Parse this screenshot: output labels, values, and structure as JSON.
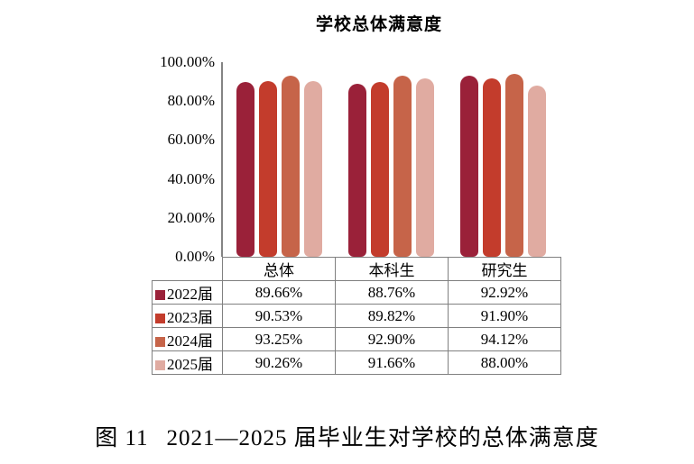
{
  "chart": {
    "title": "学校总体满意度"
  },
  "chart_data": {
    "type": "bar",
    "title": "学校总体满意度",
    "categories": [
      "总体",
      "本科生",
      "研究生"
    ],
    "series": [
      {
        "name": "2022届",
        "color": "#9A2139",
        "values": [
          89.66,
          88.76,
          92.92
        ]
      },
      {
        "name": "2023届",
        "color": "#C33C2C",
        "values": [
          90.53,
          89.82,
          91.9
        ]
      },
      {
        "name": "2024届",
        "color": "#C66449",
        "values": [
          93.25,
          92.9,
          94.12
        ]
      },
      {
        "name": "2025届",
        "color": "#E0ABA1",
        "values": [
          90.26,
          91.66,
          88.0
        ]
      }
    ],
    "ylim": [
      0,
      100
    ],
    "y_ticks": [
      "100.00%",
      "80.00%",
      "60.00%",
      "40.00%",
      "20.00%",
      "0.00%"
    ],
    "grid": false,
    "legend_position": "table-below",
    "bar_shape": "rounded-top"
  },
  "table": {
    "column_headers": [
      "总体",
      "本科生",
      "研究生"
    ],
    "rows": [
      {
        "label": "2022届",
        "values": [
          "89.66%",
          "88.76%",
          "92.92%"
        ]
      },
      {
        "label": "2023届",
        "values": [
          "90.53%",
          "89.82%",
          "91.90%"
        ]
      },
      {
        "label": "2024届",
        "values": [
          "93.25%",
          "92.90%",
          "94.12%"
        ]
      },
      {
        "label": "2025届",
        "values": [
          "90.26%",
          "91.66%",
          "88.00%"
        ]
      }
    ]
  },
  "caption": {
    "figure_label": "图 11",
    "text": "2021—2025 届毕业生对学校的总体满意度"
  }
}
